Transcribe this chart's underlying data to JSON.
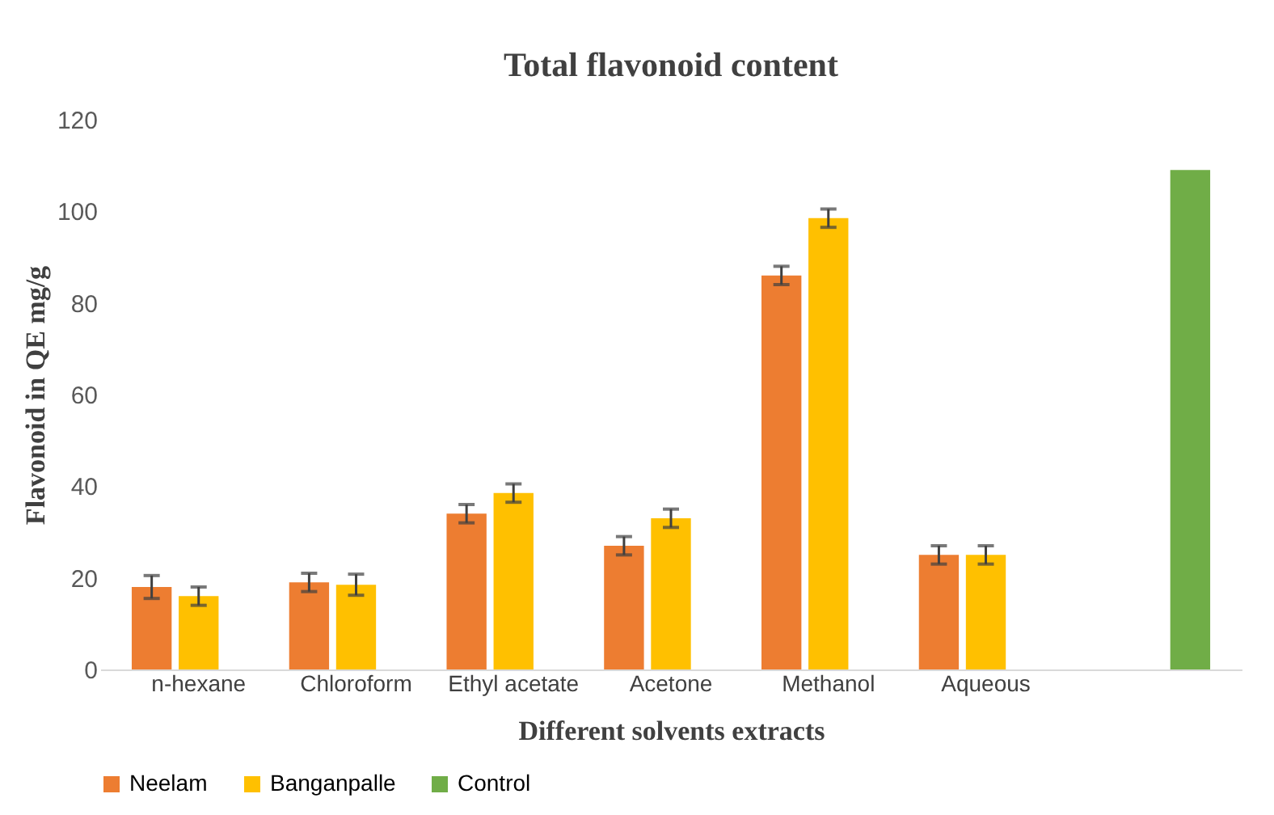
{
  "chart_data": {
    "type": "bar",
    "title": "Total flavonoid content",
    "xlabel": "Different solvents  extracts",
    "ylabel": "Flavonoid  in QE mg/g",
    "categories": [
      "n-hexane",
      "Chloroform",
      "Ethyl acetate",
      "Acetone",
      "Methanol",
      "Aqueous",
      null
    ],
    "series": [
      {
        "name": "Neelam",
        "color": "#ed7d31",
        "values": [
          18,
          19,
          34,
          27,
          86,
          25,
          null
        ],
        "errors": [
          2.5,
          2,
          2,
          2,
          2,
          2,
          null
        ]
      },
      {
        "name": "Banganpalle",
        "color": "#ffc000",
        "values": [
          16,
          18.5,
          38.5,
          33,
          98.5,
          25,
          null
        ],
        "errors": [
          2,
          2.3,
          2,
          2,
          2,
          2,
          null
        ]
      },
      {
        "name": "Control",
        "color": "#70ad47",
        "values": [
          null,
          null,
          null,
          null,
          null,
          null,
          109
        ]
      }
    ],
    "ylim": [
      0,
      120
    ],
    "yticks": [
      0,
      20,
      40,
      60,
      80,
      100,
      120
    ],
    "grid": false,
    "legend": "bottom"
  }
}
